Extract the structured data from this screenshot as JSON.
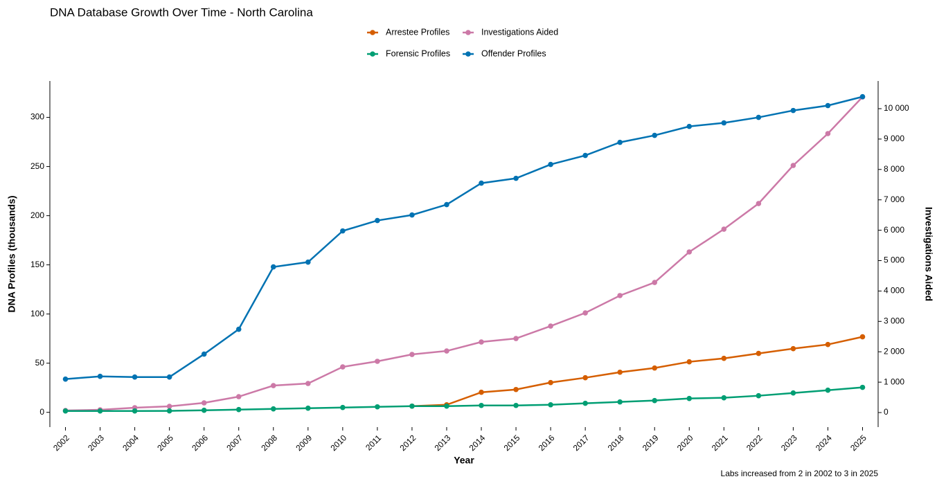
{
  "chart_data": {
    "type": "line",
    "title": "DNA Database Growth Over Time - North Carolina",
    "xlabel": "Year",
    "ylabel": "DNA Profiles (thousands)",
    "y2label": "Investigations Aided",
    "annotation": "Labs increased from 2 in 2002 to 3 in 2025",
    "x": [
      2002,
      2003,
      2004,
      2005,
      2006,
      2007,
      2008,
      2009,
      2010,
      2011,
      2012,
      2013,
      2014,
      2015,
      2016,
      2017,
      2018,
      2019,
      2020,
      2021,
      2022,
      2023,
      2024,
      2025
    ],
    "xlim": [
      2001.55,
      2025.45
    ],
    "xticks": [
      2002,
      2003,
      2004,
      2005,
      2006,
      2007,
      2008,
      2009,
      2010,
      2011,
      2012,
      2013,
      2014,
      2015,
      2016,
      2017,
      2018,
      2019,
      2020,
      2021,
      2022,
      2023,
      2024,
      2025
    ],
    "ylim": [
      -15,
      337
    ],
    "yticks": [
      0,
      50,
      100,
      150,
      200,
      250,
      300
    ],
    "y2lim": [
      -478,
      10911
    ],
    "y2ticks": [
      0,
      {
        "value": 1000,
        "label": "1 000"
      },
      {
        "value": 2000,
        "label": "2 000"
      },
      {
        "value": 3000,
        "label": "3 000"
      },
      {
        "value": 4000,
        "label": "4 000"
      },
      {
        "value": 5000,
        "label": "5 000"
      },
      {
        "value": 6000,
        "label": "6 000"
      },
      {
        "value": 7000,
        "label": "7 000"
      },
      {
        "value": 8000,
        "label": "8 000"
      },
      {
        "value": 9000,
        "label": "9 000"
      },
      {
        "value": 10000,
        "label": "10 000"
      }
    ],
    "grid": false,
    "legend": "top",
    "series": [
      {
        "name": "Arrestee Profiles",
        "color": "#d55e00",
        "values": [
          null,
          null,
          null,
          null,
          null,
          null,
          null,
          null,
          null,
          null,
          6.3,
          7.7,
          20.4,
          23.2,
          30.3,
          35.2,
          40.8,
          45.1,
          51.4,
          54.9,
          59.9,
          64.8,
          69.0,
          76.8
        ]
      },
      {
        "name": "Investigations Aided",
        "color": "#cc79a7",
        "axis": "y2",
        "values": [
          68,
          91,
          160,
          205,
          319,
          524,
          888,
          957,
          1503,
          1686,
          1913,
          2027,
          2323,
          2437,
          2847,
          3280,
          3850,
          4282,
          5285,
          6036,
          6879,
          8132,
          9180,
          10387
        ]
      },
      {
        "name": "Forensic Profiles",
        "color": "#009e73",
        "values": [
          1.4,
          1.4,
          1.4,
          1.5,
          2.1,
          2.8,
          3.5,
          4.2,
          4.9,
          5.6,
          6.3,
          6.3,
          7.0,
          7.0,
          7.7,
          9.2,
          10.6,
          12.0,
          14.1,
          14.8,
          16.9,
          19.7,
          22.5,
          25.4
        ]
      },
      {
        "name": "Offender Profiles",
        "color": "#0072b2",
        "values": [
          33.8,
          36.6,
          35.9,
          35.9,
          59.2,
          84.5,
          147.9,
          152.8,
          184.5,
          195.1,
          200.7,
          211.3,
          233.1,
          238.0,
          252.1,
          261.3,
          274.6,
          281.7,
          290.8,
          294.4,
          300,
          307,
          312,
          321
        ]
      }
    ]
  }
}
